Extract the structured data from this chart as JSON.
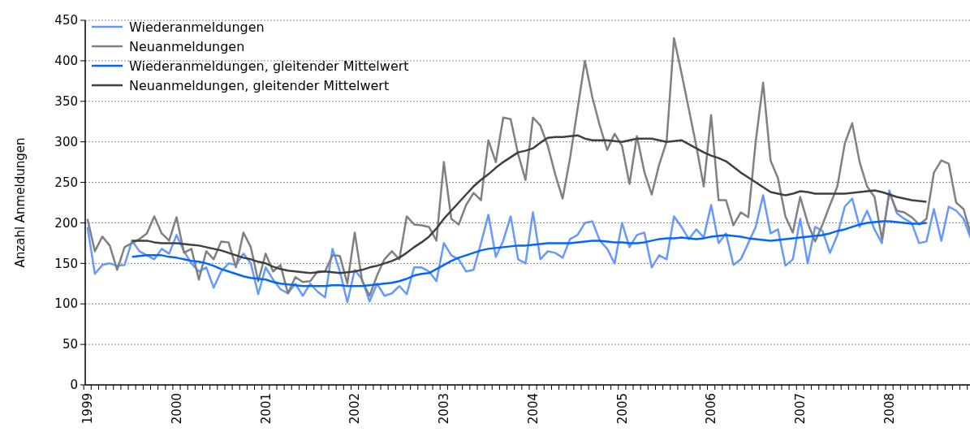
{
  "chart_data": {
    "type": "line",
    "ylabel": "Anzahl Anmeldungen",
    "categories": [
      "1999",
      null,
      null,
      null,
      null,
      null,
      null,
      null,
      null,
      null,
      null,
      null,
      "2000",
      null,
      null,
      null,
      null,
      null,
      null,
      null,
      null,
      null,
      null,
      null,
      "2001",
      null,
      null,
      null,
      null,
      null,
      null,
      null,
      null,
      null,
      null,
      null,
      "2002",
      null,
      null,
      null,
      null,
      null,
      null,
      null,
      null,
      null,
      null,
      null,
      "2003",
      null,
      null,
      null,
      null,
      null,
      null,
      null,
      null,
      null,
      null,
      null,
      "2004",
      null,
      null,
      null,
      null,
      null,
      null,
      null,
      null,
      null,
      null,
      null,
      "2005",
      null,
      null,
      null,
      null,
      null,
      null,
      null,
      null,
      null,
      null,
      null,
      "2006",
      null,
      null,
      null,
      null,
      null,
      null,
      null,
      null,
      null,
      null,
      null,
      "2007",
      null,
      null,
      null,
      null,
      null,
      null,
      null,
      null,
      null,
      null,
      null,
      "2008",
      null,
      null,
      null,
      null,
      null,
      null,
      null,
      null,
      null,
      null,
      null
    ],
    "series": [
      {
        "name": "Wiederanmeldungen",
        "color": "#6699ff",
        "values": [
          195,
          137,
          148,
          150,
          147,
          148,
          178,
          165,
          160,
          155,
          168,
          162,
          185,
          165,
          150,
          140,
          145,
          120,
          140,
          150,
          148,
          162,
          150,
          112,
          145,
          130,
          118,
          113,
          125,
          110,
          125,
          115,
          108,
          168,
          140,
          102,
          142,
          130,
          103,
          125,
          110,
          113,
          122,
          112,
          145,
          145,
          140,
          128,
          175,
          160,
          155,
          140,
          142,
          175,
          210,
          158,
          178,
          208,
          155,
          150,
          213,
          155,
          165,
          163,
          157,
          180,
          185,
          200,
          202,
          178,
          168,
          150,
          200,
          170,
          185,
          188,
          145,
          160,
          155,
          208,
          195,
          180,
          192,
          182,
          222,
          175,
          187,
          148,
          155,
          175,
          195,
          234,
          187,
          192,
          147,
          155,
          205,
          150,
          195,
          190,
          163,
          185,
          220,
          230,
          195,
          215,
          192,
          175,
          240,
          212,
          205,
          200,
          175,
          177,
          217,
          178,
          220,
          215,
          205,
          180
        ]
      },
      {
        "name": "Neuanmeldungen",
        "color": "#808080",
        "values": [
          205,
          165,
          183,
          172,
          142,
          170,
          175,
          180,
          187,
          208,
          187,
          178,
          207,
          163,
          168,
          130,
          165,
          155,
          177,
          176,
          145,
          188,
          170,
          128,
          162,
          140,
          148,
          113,
          133,
          127,
          128,
          140,
          140,
          160,
          159,
          125,
          188,
          128,
          110,
          135,
          155,
          165,
          155,
          208,
          198,
          197,
          195,
          178,
          275,
          205,
          198,
          222,
          237,
          228,
          302,
          275,
          330,
          328,
          285,
          253,
          330,
          320,
          295,
          260,
          230,
          280,
          340,
          400,
          355,
          320,
          290,
          310,
          295,
          248,
          307,
          263,
          235,
          272,
          300,
          428,
          385,
          340,
          295,
          245,
          333,
          228,
          228,
          197,
          213,
          207,
          300,
          373,
          277,
          255,
          208,
          188,
          232,
          200,
          177,
          198,
          222,
          245,
          298,
          323,
          275,
          245,
          232,
          180,
          237,
          215,
          213,
          207,
          198,
          205,
          262,
          277,
          273,
          225,
          217,
          185
        ]
      },
      {
        "name": "Wiederanmeldungen, gleitender Mittelwert",
        "color": "#0066ff",
        "values": [
          null,
          null,
          null,
          null,
          null,
          null,
          158,
          159,
          160,
          160,
          160,
          158,
          157,
          155,
          153,
          152,
          150,
          147,
          143,
          140,
          137,
          134,
          132,
          131,
          130,
          127,
          125,
          124,
          123,
          122,
          122,
          122,
          122,
          123,
          123,
          122,
          122,
          122,
          123,
          124,
          125,
          126,
          128,
          131,
          135,
          137,
          138,
          143,
          148,
          153,
          157,
          160,
          163,
          166,
          168,
          169,
          170,
          171,
          172,
          172,
          173,
          174,
          175,
          175,
          175,
          175,
          176,
          177,
          178,
          178,
          177,
          176,
          176,
          175,
          175,
          176,
          178,
          180,
          181,
          181,
          182,
          181,
          180,
          181,
          183,
          184,
          185,
          184,
          183,
          181,
          180,
          179,
          178,
          179,
          180,
          181,
          182,
          183,
          184,
          185,
          187,
          190,
          192,
          195,
          198,
          200,
          201,
          202,
          202,
          201,
          200,
          199,
          199,
          200,
          null,
          null,
          null,
          null,
          null,
          null
        ]
      },
      {
        "name": "Neuanmeldungen, gleitender Mittelwert",
        "color": "#404040",
        "values": [
          null,
          null,
          null,
          null,
          null,
          null,
          178,
          178,
          178,
          176,
          175,
          175,
          175,
          174,
          173,
          172,
          170,
          168,
          166,
          163,
          160,
          157,
          155,
          152,
          150,
          146,
          143,
          141,
          140,
          139,
          138,
          139,
          140,
          139,
          138,
          139,
          140,
          142,
          145,
          147,
          150,
          153,
          157,
          163,
          170,
          176,
          183,
          193,
          205,
          215,
          225,
          235,
          245,
          253,
          260,
          268,
          275,
          281,
          287,
          289,
          292,
          299,
          305,
          306,
          306,
          307,
          308,
          304,
          302,
          302,
          302,
          301,
          300,
          302,
          304,
          304,
          304,
          302,
          300,
          301,
          302,
          297,
          292,
          287,
          283,
          280,
          276,
          269,
          262,
          256,
          250,
          244,
          238,
          236,
          234,
          236,
          239,
          238,
          236,
          236,
          236,
          236,
          236,
          237,
          238,
          239,
          240,
          238,
          235,
          232,
          230,
          228,
          227,
          226,
          null,
          null,
          null,
          null,
          null,
          null
        ]
      }
    ],
    "ylim": [
      0,
      450
    ],
    "yticks": [
      0,
      50,
      100,
      150,
      200,
      250,
      300,
      350,
      400,
      450
    ],
    "grid": "y",
    "legend": "top left",
    "marker": "none",
    "line_style": "solid"
  }
}
